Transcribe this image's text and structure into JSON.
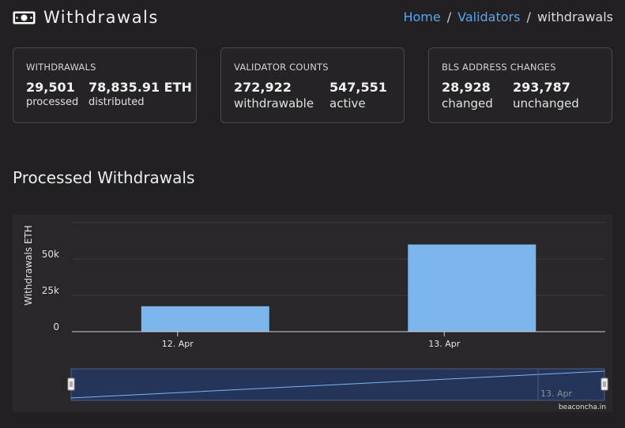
{
  "header": {
    "title": "Withdrawals",
    "breadcrumb": {
      "home": "Home",
      "validators": "Validators",
      "current": "withdrawals",
      "sep": "/"
    }
  },
  "cards": {
    "withdrawals": {
      "title": "WITHDRAWALS",
      "stats": [
        {
          "value": "29,501",
          "label": "processed"
        },
        {
          "value": "78,835.91 ETH",
          "label": "distributed"
        }
      ]
    },
    "validator_counts": {
      "title": "VALIDATOR COUNTS",
      "stats": [
        {
          "value": "272,922",
          "label": "withdrawable"
        },
        {
          "value": "547,551",
          "label": "active"
        }
      ]
    },
    "bls_changes": {
      "title": "BLS ADDRESS CHANGES",
      "stats": [
        {
          "value": "28,928",
          "label": "changed"
        },
        {
          "value": "293,787",
          "label": "unchanged"
        }
      ]
    }
  },
  "section": {
    "title": "Processed Withdrawals"
  },
  "chart_data": {
    "type": "bar",
    "categories": [
      "12. Apr",
      "13. Apr"
    ],
    "values": [
      17500,
      60000
    ],
    "ylabel": "Withdrawals ETH",
    "yticks": [
      0,
      25000,
      50000
    ],
    "ytick_labels": [
      "0",
      "25k",
      "50k"
    ],
    "ylim": [
      0,
      75000
    ],
    "grid": true,
    "bar_color": "#7cb5ec",
    "navigator": {
      "label": "13. Apr"
    },
    "credits": "beaconcha.in"
  }
}
